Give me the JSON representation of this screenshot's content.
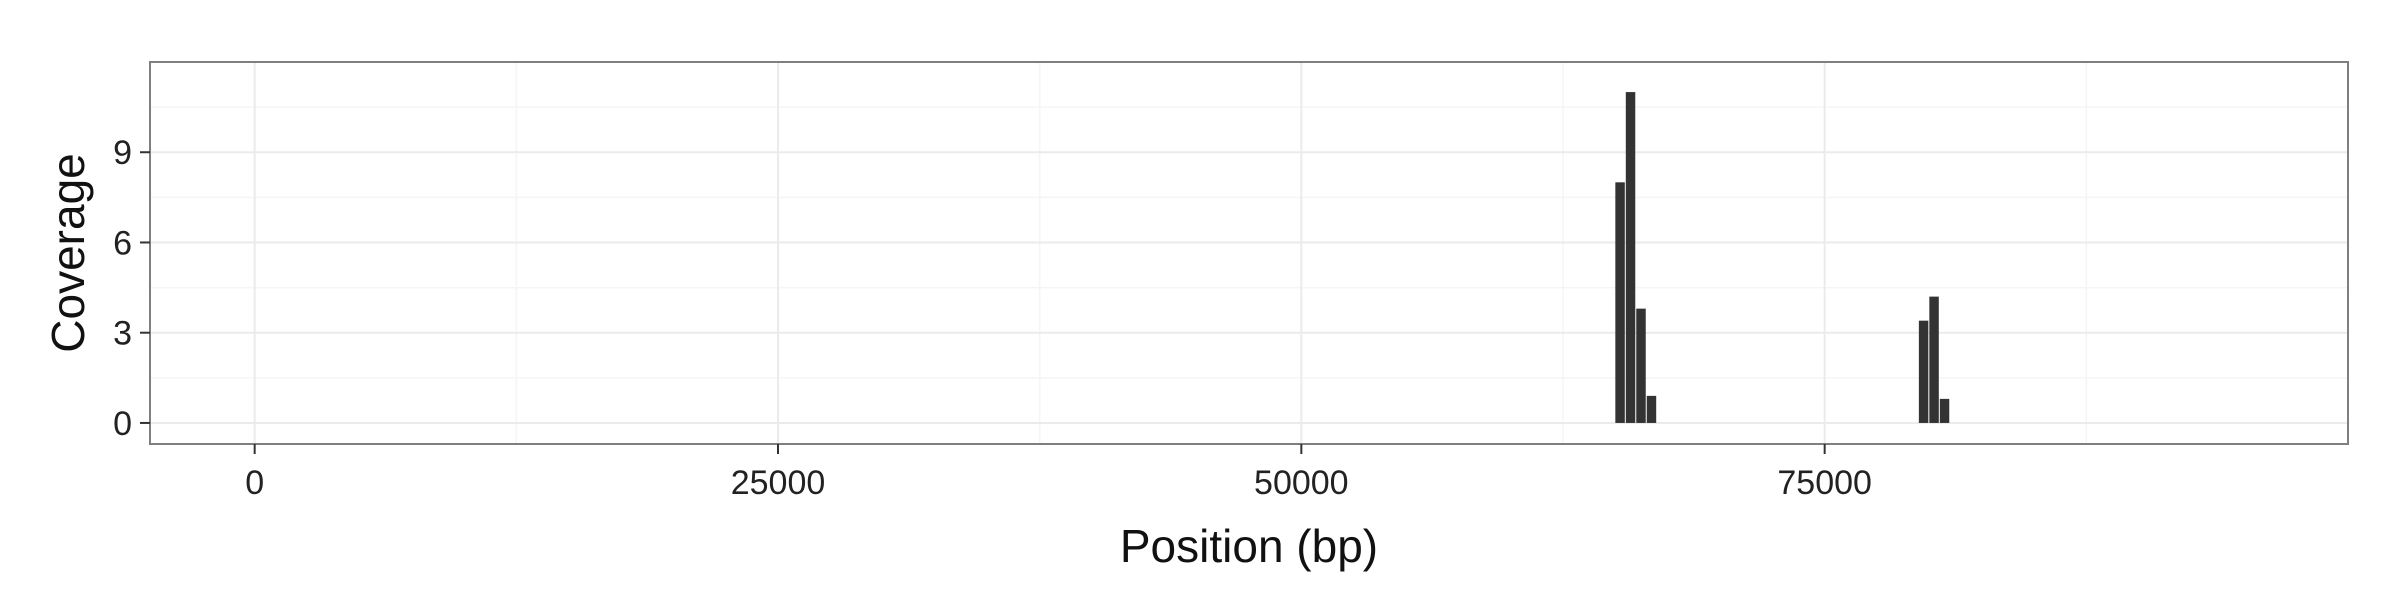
{
  "chart_data": {
    "type": "bar",
    "title": "",
    "xlabel": "Position (bp)",
    "ylabel": "Coverage",
    "xlim": [
      -5000,
      100000
    ],
    "ylim": [
      -0.7,
      12.0
    ],
    "x_ticks": [
      0,
      25000,
      50000,
      75000
    ],
    "x_tick_labels": [
      "0",
      "25000",
      "50000",
      "75000"
    ],
    "y_ticks": [
      0,
      3,
      6,
      9
    ],
    "y_tick_labels": [
      "0",
      "3",
      "6",
      "9"
    ],
    "grid": true,
    "legend": "none",
    "bar_width": 500,
    "bars": [
      {
        "x": 65250,
        "value": 8.0
      },
      {
        "x": 65750,
        "value": 11.0
      },
      {
        "x": 66250,
        "value": 3.8
      },
      {
        "x": 66750,
        "value": 0.9
      },
      {
        "x": 79750,
        "value": 3.4
      },
      {
        "x": 80250,
        "value": 4.2
      },
      {
        "x": 80750,
        "value": 0.8
      }
    ],
    "colors": {
      "bar": "#333333",
      "panel_border": "#7f7f7f",
      "grid_major": "#ebebeb",
      "grid_minor": "#f5f5f5",
      "background": "#ffffff"
    }
  }
}
